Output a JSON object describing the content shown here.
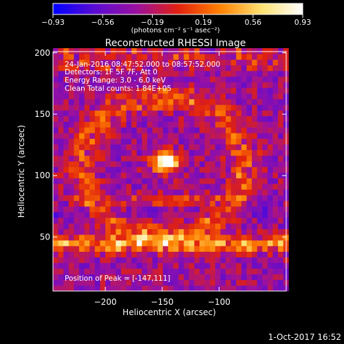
{
  "chart_data": {
    "type": "heatmap",
    "title": "Reconstructed RHESSI Image",
    "xlabel": "Heliocentric X (arcsec)",
    "ylabel": "Heliocentric Y (arcsec)",
    "xlim": [
      -246,
      -41
    ],
    "ylim": [
      6,
      201
    ],
    "x_ticks": [
      -200,
      -150,
      -100
    ],
    "x_tick_labels": [
      "−200",
      "−150",
      "−100"
    ],
    "y_ticks": [
      50,
      100,
      150,
      200
    ],
    "y_tick_labels": [
      "50",
      "100",
      "150",
      "200"
    ],
    "colorbar": {
      "range": [
        -0.93,
        0.93
      ],
      "ticks": [
        -0.93,
        -0.56,
        -0.19,
        0.19,
        0.56,
        0.93
      ],
      "tick_labels": [
        "−0.93",
        "−0.56",
        "−0.19",
        "0.19",
        "0.56",
        "0.93"
      ],
      "unit_label": "(photons cm⁻² s⁻¹ asec⁻²)",
      "colors": [
        "#0000ff",
        "#5a0cd2",
        "#9a10a0",
        "#e02010",
        "#ff8000",
        "#ffe070",
        "#ffffff"
      ]
    },
    "annotations": [
      "24-Jan-2016 08:47:52.000 to 08:57:52.000",
      "Detectors: 1F 5F 7F, Att 0",
      "Energy Range: 3.0 - 6.0 keV",
      "Clean     Total counts: 1.84E+05"
    ],
    "peak_label": "Position of Peak = [-147,111]",
    "peak_position": [
      -147,
      111
    ],
    "structure": {
      "background_level": -0.3,
      "core": {
        "center": [
          -147,
          111
        ],
        "peak_value": 0.93
      },
      "ring": {
        "center": [
          -150,
          108
        ],
        "radius_x": 72,
        "radius_y": 56,
        "level": 0.4
      },
      "gap_band": {
        "center_y": 70,
        "level": -0.45
      },
      "lower_bright_band": {
        "center_y": 45,
        "level": 0.6
      }
    }
  },
  "footer": {
    "date": "1-Oct-2017 16:52"
  }
}
